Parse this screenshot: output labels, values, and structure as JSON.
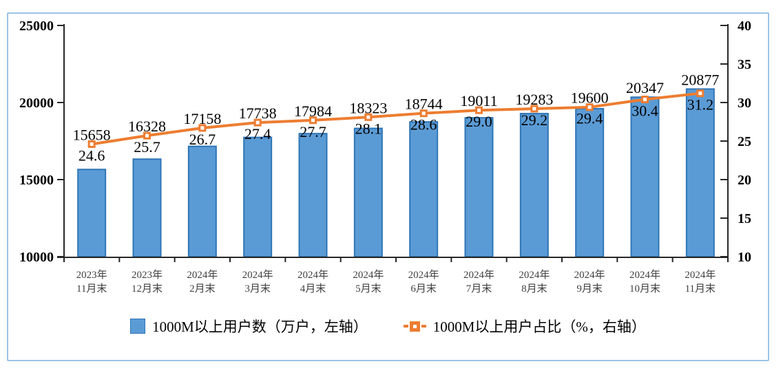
{
  "chart_data": {
    "type": "bar",
    "subtype": "combo-bar-line-dual-axis",
    "categories": [
      "2023年\n11月末",
      "2023年\n12月末",
      "2024年\n2月末",
      "2024年\n3月末",
      "2024年\n4月末",
      "2024年\n5月末",
      "2024年\n6月末",
      "2024年\n7月末",
      "2024年\n8月末",
      "2024年\n9月末",
      "2024年\n10月末",
      "2024年\n11月末"
    ],
    "series": [
      {
        "name": "1000M以上用户数（万户，左轴）",
        "type": "bar",
        "axis": "left",
        "values": [
          15658,
          16328,
          17158,
          17738,
          17984,
          18323,
          18744,
          19011,
          19283,
          19600,
          20347,
          20877
        ],
        "labels": [
          "15658",
          "16328",
          "17158",
          "17738",
          "17984",
          "18323",
          "18744",
          "19011",
          "19283",
          "19600",
          "20347",
          "20877"
        ]
      },
      {
        "name": "1000M以上用户占比（%，右轴）",
        "type": "line",
        "axis": "right",
        "values": [
          24.6,
          25.7,
          26.7,
          27.4,
          27.7,
          28.1,
          28.6,
          29.0,
          29.2,
          29.4,
          30.4,
          31.2
        ],
        "labels": [
          "24.6",
          "25.7",
          "26.7",
          "27.4",
          "27.7",
          "28.1",
          "28.6",
          "29.0",
          "29.2",
          "29.4",
          "30.4",
          "31.2"
        ]
      }
    ],
    "left_axis": {
      "min": 10000,
      "max": 25000,
      "ticks": [
        10000,
        15000,
        20000,
        25000
      ]
    },
    "right_axis": {
      "min": 10,
      "max": 40,
      "ticks": [
        10,
        15,
        20,
        25,
        30,
        35,
        40
      ]
    },
    "grid": false,
    "legend_position": "bottom",
    "title": ""
  },
  "colors": {
    "bar_fill": "#5B9BD5",
    "bar_border": "#2E75B6",
    "line": "#ED7D31",
    "marker_fill": "#ED7D31",
    "marker_center": "#FFFFFF",
    "frame_border": "#9DC3E6",
    "axis": "#262626",
    "x_label": "#404040",
    "data_label": "#000000"
  }
}
